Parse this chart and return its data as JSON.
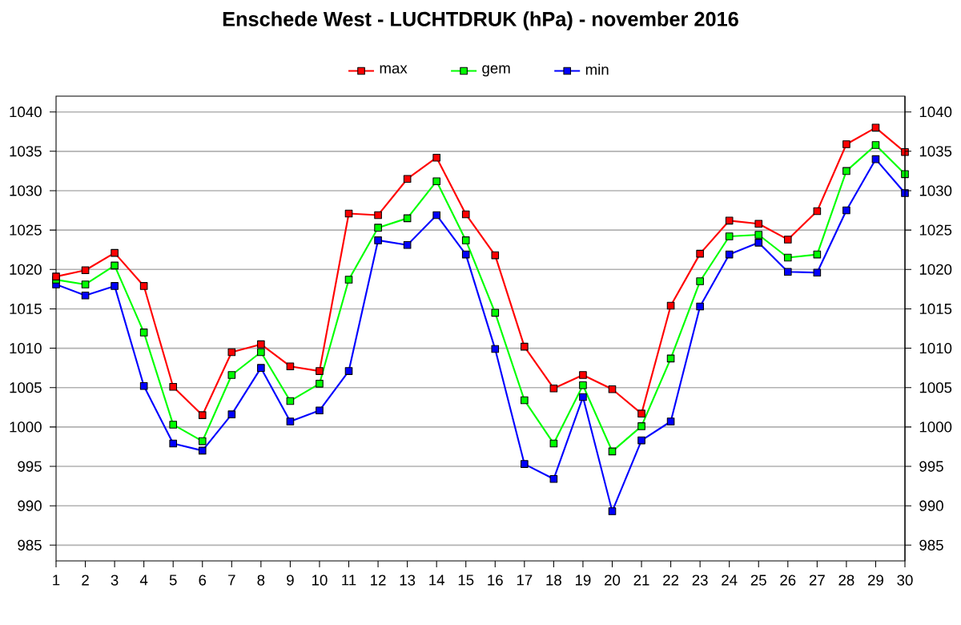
{
  "chart_data": {
    "type": "line",
    "title": "Enschede West  -  LUCHTDRUK (hPa)  -  november 2016",
    "x": [
      1,
      2,
      3,
      4,
      5,
      6,
      7,
      8,
      9,
      10,
      11,
      12,
      13,
      14,
      15,
      16,
      17,
      18,
      19,
      20,
      21,
      22,
      23,
      24,
      25,
      26,
      27,
      28,
      29,
      30
    ],
    "series": [
      {
        "name": "max",
        "color": "#ff0000",
        "values": [
          1019.1,
          1019.9,
          1022.1,
          1017.9,
          1005.1,
          1001.5,
          1009.5,
          1010.5,
          1007.7,
          1007.1,
          1027.1,
          1026.9,
          1031.5,
          1034.2,
          1027.0,
          1021.8,
          1010.2,
          1004.9,
          1006.6,
          1004.8,
          1001.7,
          1015.4,
          1022.0,
          1026.2,
          1025.8,
          1023.8,
          1027.4,
          1035.9,
          1038.0,
          1034.9
        ]
      },
      {
        "name": "gem",
        "color": "#00ff00",
        "values": [
          1018.7,
          1018.1,
          1020.5,
          1012.0,
          1000.3,
          998.2,
          1006.6,
          1009.5,
          1003.3,
          1005.5,
          1018.7,
          1025.3,
          1026.5,
          1031.2,
          1023.7,
          1014.5,
          1003.4,
          997.9,
          1005.3,
          996.9,
          1000.1,
          1008.7,
          1018.5,
          1024.2,
          1024.4,
          1021.5,
          1021.9,
          1032.5,
          1035.8,
          1032.1
        ]
      },
      {
        "name": "min",
        "color": "#0000ff",
        "values": [
          1018.1,
          1016.7,
          1017.9,
          1005.2,
          997.9,
          997.0,
          1001.6,
          1007.5,
          1000.7,
          1002.1,
          1007.1,
          1023.7,
          1023.1,
          1026.9,
          1021.9,
          1009.9,
          995.3,
          993.4,
          1003.8,
          989.3,
          998.3,
          1000.7,
          1015.3,
          1021.9,
          1023.4,
          1019.7,
          1019.6,
          1027.5,
          1034.0,
          1029.7
        ]
      }
    ],
    "xlim": [
      1,
      30
    ],
    "xticks": [
      1,
      2,
      3,
      4,
      5,
      6,
      7,
      8,
      9,
      10,
      11,
      12,
      13,
      14,
      15,
      16,
      17,
      18,
      19,
      20,
      21,
      22,
      23,
      24,
      25,
      26,
      27,
      28,
      29,
      30
    ],
    "ylim": [
      983,
      1042
    ],
    "yticks": [
      985,
      990,
      995,
      1000,
      1005,
      1010,
      1015,
      1020,
      1025,
      1030,
      1035,
      1040
    ],
    "y2lim": [
      983,
      1042
    ],
    "y2ticks": [
      985,
      990,
      995,
      1000,
      1005,
      1010,
      1015,
      1020,
      1025,
      1030,
      1035,
      1040
    ],
    "grid": "y",
    "legend": "top",
    "marker": "square",
    "line_style": "solid"
  }
}
